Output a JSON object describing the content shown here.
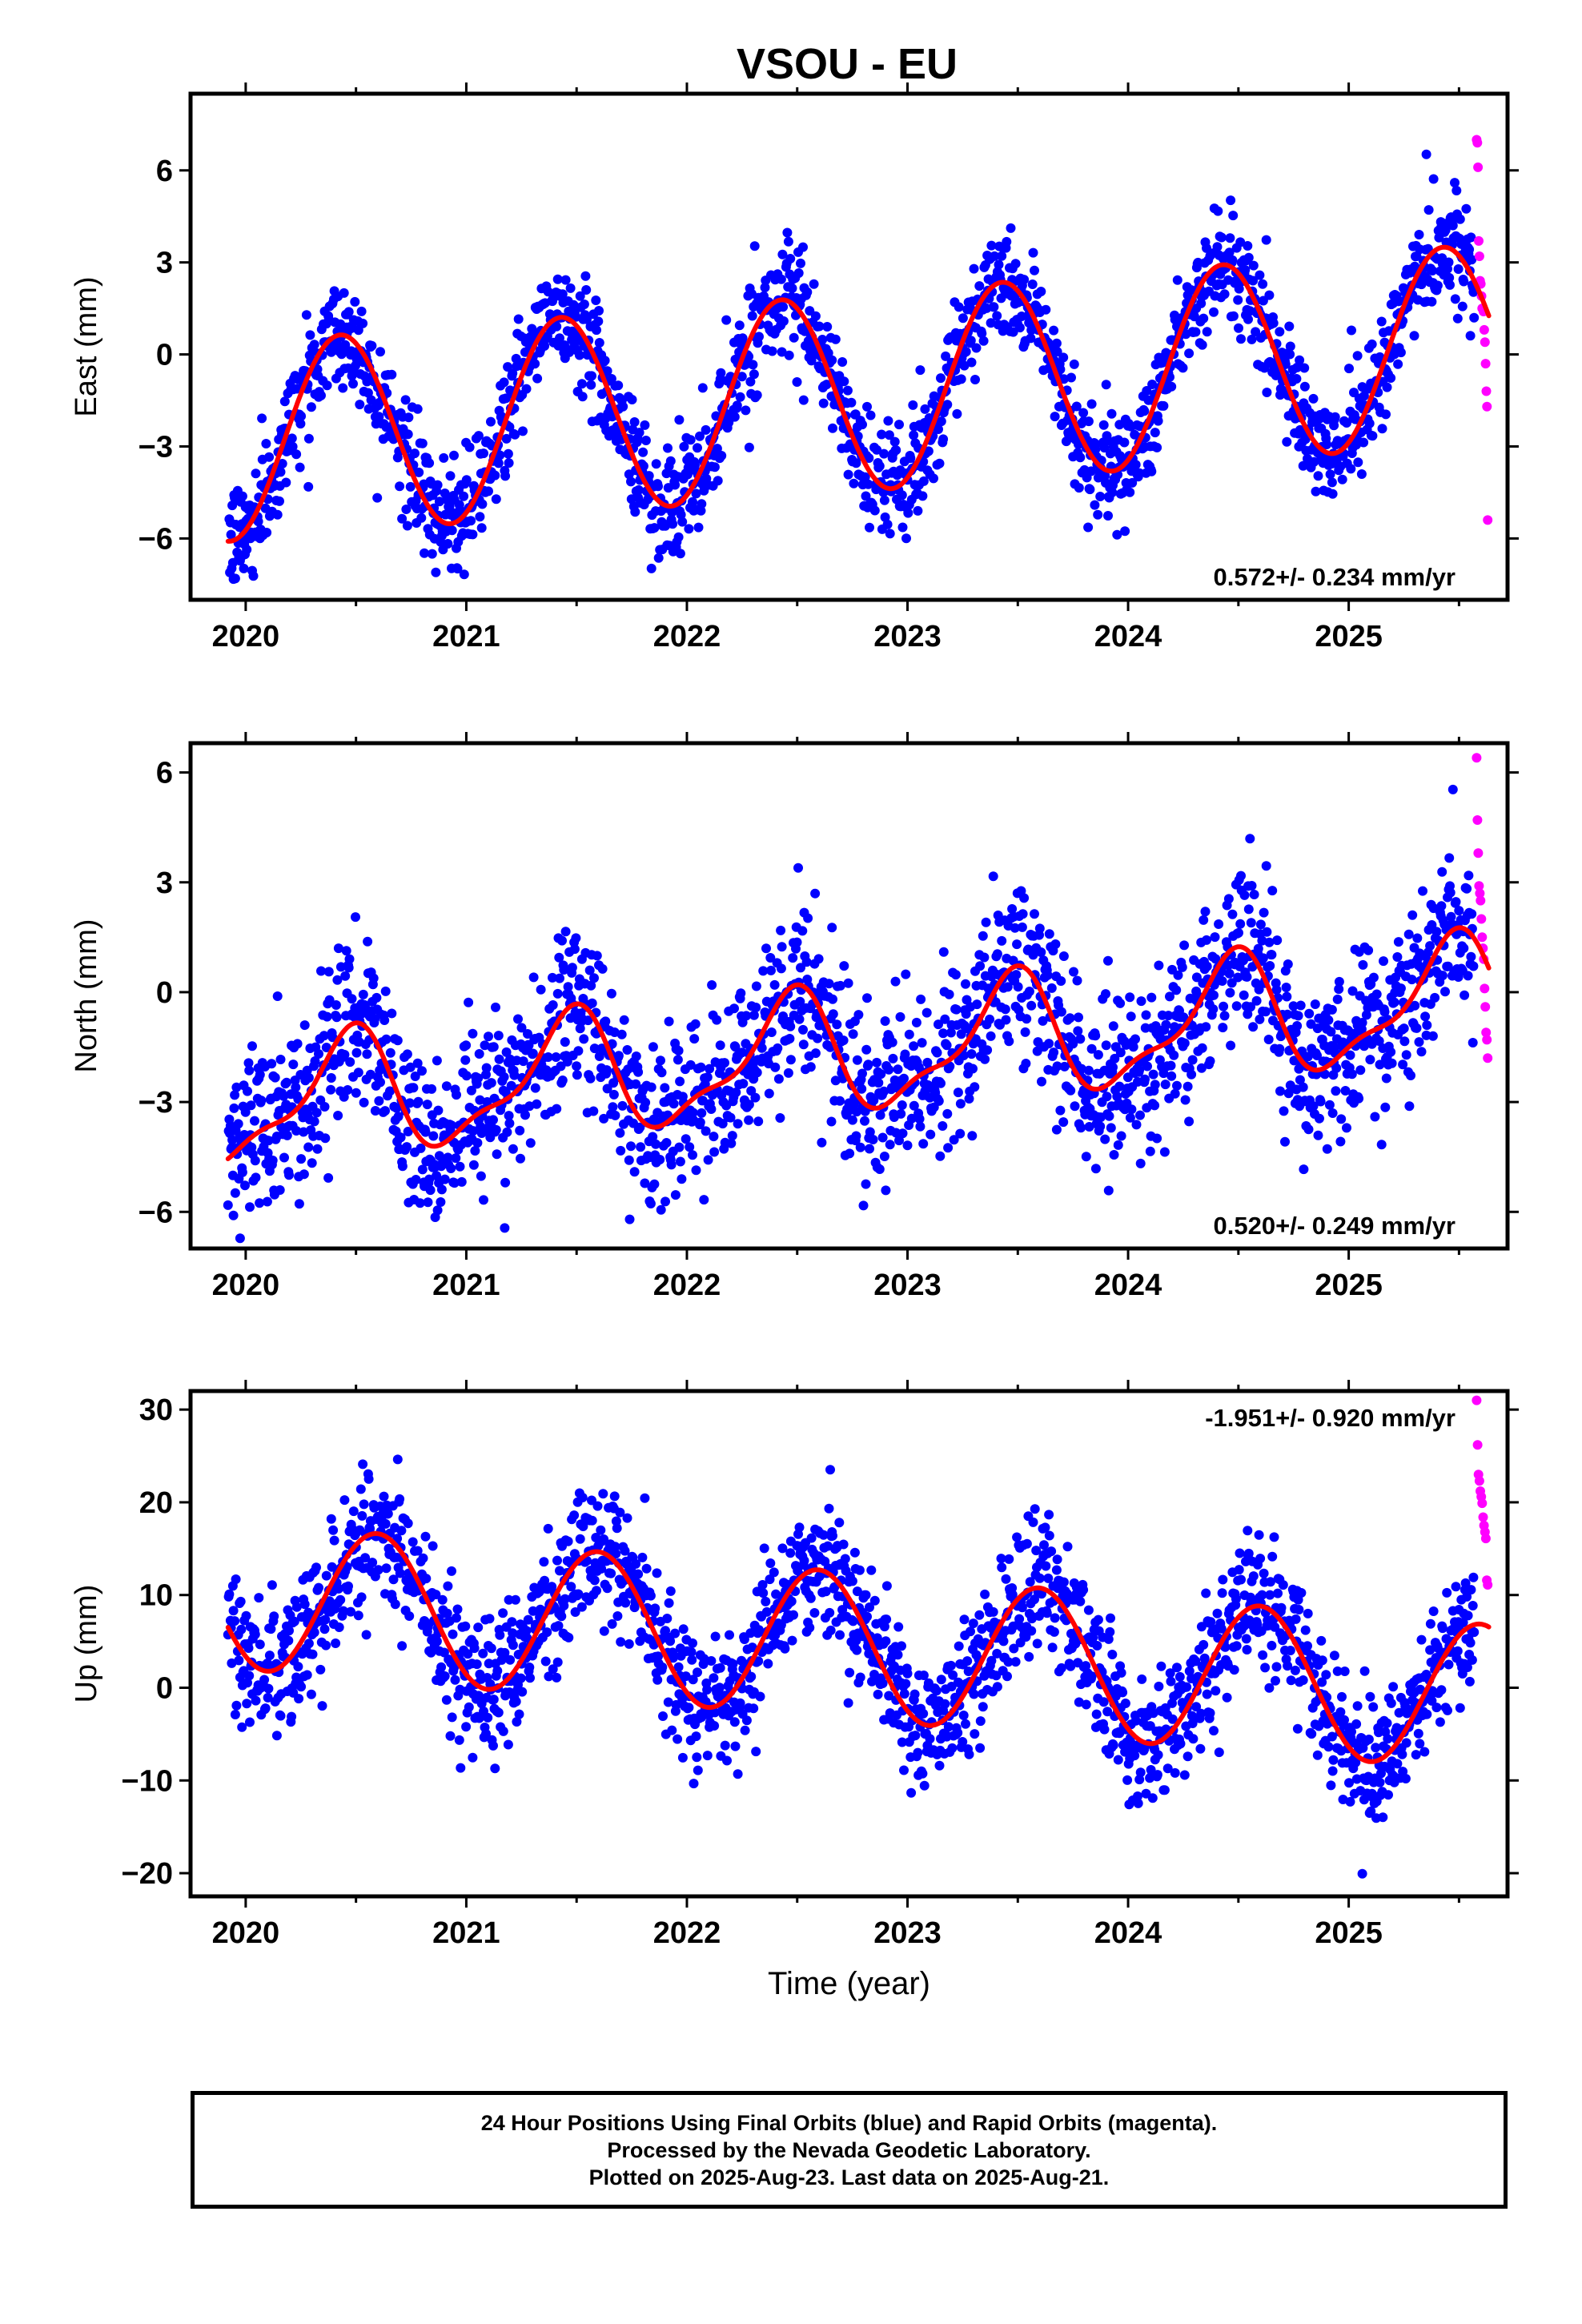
{
  "title": "VSOU - EU",
  "colors": {
    "final": "#0000ff",
    "rapid": "#ff00ff",
    "model": "#ff0000",
    "frame": "#000000"
  },
  "chart_data": [
    {
      "type": "scatter",
      "component": "East",
      "ylabel": "East (mm)",
      "xlabel": "",
      "xlim": [
        2019.75,
        2025.72
      ],
      "ylim": [
        -8,
        8.5
      ],
      "xticks": [
        "2020",
        "2021",
        "2022",
        "2023",
        "2024",
        "2025"
      ],
      "yticks": [
        -6,
        -3,
        0,
        3,
        6
      ],
      "rate_label": "0.572+/- 0.234 mm/yr",
      "rate_position": "bottom-right",
      "model": {
        "offset": -1.4,
        "slope": 0.572,
        "amp_cos": -2.9,
        "amp_sin": 1.4,
        "amp_cos2": 0.0,
        "amp_sin2": 0.0
      },
      "scatter_sd": 0.9,
      "rapid_values": [
        7.0,
        6.9,
        6.1,
        3.7,
        3.2,
        2.4,
        2.3,
        1.9,
        1.5,
        1.5,
        1.4,
        0.8,
        0.4,
        -0.3,
        -1.2,
        -1.7,
        -5.4
      ]
    },
    {
      "type": "scatter",
      "component": "North",
      "ylabel": "North (mm)",
      "xlabel": "",
      "xlim": [
        2019.75,
        2025.72
      ],
      "ylim": [
        -7,
        6.8
      ],
      "xticks": [
        "2020",
        "2021",
        "2022",
        "2023",
        "2024",
        "2025"
      ],
      "yticks": [
        -6,
        -3,
        0,
        3,
        6
      ],
      "rate_label": "0.520+/- 0.249 mm/yr",
      "rate_position": "bottom-right",
      "model": {
        "offset": -1.8,
        "slope": 0.52,
        "amp_cos": -1.5,
        "amp_sin": 0.4,
        "amp_cos2": 0.5,
        "amp_sin2": 0.2
      },
      "scatter_sd": 1.15,
      "rapid_values": [
        6.4,
        4.7,
        3.8,
        2.9,
        2.7,
        2.5,
        2.0,
        1.5,
        1.2,
        0.9,
        0.1,
        -0.4,
        -1.1,
        -1.3,
        -1.8
      ]
    },
    {
      "type": "scatter",
      "component": "Up",
      "ylabel": "Up (mm)",
      "xlabel": "Time (year)",
      "xlim": [
        2019.75,
        2025.72
      ],
      "ylim": [
        -22.5,
        32
      ],
      "xticks": [
        "2020",
        "2021",
        "2022",
        "2023",
        "2024",
        "2025"
      ],
      "yticks": [
        -20,
        -10,
        0,
        10,
        20,
        30
      ],
      "rate_label": "-1.951+/- 0.920 mm/yr",
      "rate_position": "top-right",
      "model": {
        "offset": 5.0,
        "slope": -1.951,
        "amp_cos": -6.5,
        "amp_sin": -4.5,
        "amp_cos2": 0.0,
        "amp_sin2": 0.0
      },
      "scatter_sd": 3.6,
      "rapid_values": [
        31.0,
        26.2,
        23.0,
        22.3,
        21.2,
        20.6,
        19.9,
        18.4,
        17.5,
        16.8,
        16.1,
        11.6,
        11.1
      ]
    }
  ],
  "footer": {
    "line1": "24 Hour Positions Using Final Orbits (blue) and Rapid Orbits (magenta).",
    "line2": "Processed by the Nevada Geodetic Laboratory.",
    "line3": "Plotted on 2025-Aug-23. Last data on 2025-Aug-21."
  }
}
